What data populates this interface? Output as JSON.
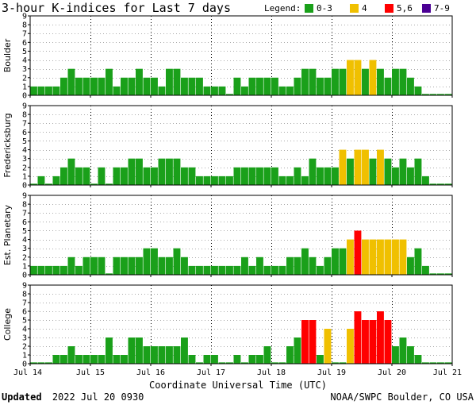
{
  "title": "3-hour K-indices for Last 7 days",
  "legend": {
    "label": "Legend:",
    "items": [
      {
        "text": "0-3",
        "color": "#1aa01a"
      },
      {
        "text": "4",
        "color": "#f0c000"
      },
      {
        "text": "5,6",
        "color": "#ff0000"
      },
      {
        "text": "7-9",
        "color": "#4b0094"
      }
    ]
  },
  "xlabel": "Coordinate Universal Time (UTC)",
  "footer": {
    "updated_label": "Updated",
    "updated_value": "2022 Jul 20 0930",
    "source": "NOAA/SWPC Boulder, CO USA"
  },
  "chart_data": [
    {
      "type": "bar",
      "ylabel": "Boulder",
      "ylim": [
        0,
        9
      ],
      "yticks": [
        0,
        1,
        2,
        3,
        4,
        5,
        6,
        7,
        8,
        9
      ],
      "xticks": [
        "Jul 14",
        "Jul 15",
        "Jul 16",
        "Jul 17",
        "Jul 18",
        "Jul 19",
        "Jul 20",
        "Jul 21"
      ],
      "grid": true,
      "values": [
        1,
        1,
        1,
        1,
        2,
        3,
        2,
        2,
        2,
        2,
        3,
        1,
        2,
        2,
        3,
        2,
        2,
        1,
        3,
        3,
        2,
        2,
        2,
        1,
        1,
        1,
        0,
        2,
        1,
        2,
        2,
        2,
        2,
        1,
        1,
        2,
        3,
        3,
        2,
        2,
        3,
        3,
        4,
        4,
        3,
        4,
        3,
        2,
        3,
        3,
        2,
        1,
        0,
        0,
        0,
        0
      ]
    },
    {
      "type": "bar",
      "ylabel": "Fredericksburg",
      "ylim": [
        0,
        9
      ],
      "yticks": [
        0,
        1,
        2,
        3,
        4,
        5,
        6,
        7,
        8,
        9
      ],
      "xticks": [
        "Jul 14",
        "Jul 15",
        "Jul 16",
        "Jul 17",
        "Jul 18",
        "Jul 19",
        "Jul 20",
        "Jul 21"
      ],
      "grid": true,
      "values": [
        0,
        1,
        0,
        1,
        2,
        3,
        2,
        2,
        0,
        2,
        0,
        2,
        2,
        3,
        3,
        2,
        2,
        3,
        3,
        3,
        2,
        2,
        1,
        1,
        1,
        1,
        1,
        2,
        2,
        2,
        2,
        2,
        2,
        1,
        1,
        2,
        1,
        3,
        2,
        2,
        2,
        4,
        3,
        4,
        4,
        3,
        4,
        3,
        2,
        3,
        2,
        3,
        1,
        0,
        0,
        0
      ]
    },
    {
      "type": "bar",
      "ylabel": "Est. Planetary",
      "ylim": [
        0,
        9
      ],
      "yticks": [
        0,
        1,
        2,
        3,
        4,
        5,
        6,
        7,
        8,
        9
      ],
      "xticks": [
        "Jul 14",
        "Jul 15",
        "Jul 16",
        "Jul 17",
        "Jul 18",
        "Jul 19",
        "Jul 20",
        "Jul 21"
      ],
      "grid": true,
      "values": [
        1,
        1,
        1,
        1,
        1,
        2,
        1,
        2,
        2,
        2,
        0,
        2,
        2,
        2,
        2,
        3,
        3,
        2,
        2,
        3,
        2,
        1,
        1,
        1,
        1,
        1,
        1,
        1,
        2,
        1,
        2,
        1,
        1,
        1,
        2,
        2,
        3,
        2,
        1,
        2,
        3,
        3,
        4,
        5,
        4,
        4,
        4,
        4,
        4,
        4,
        2,
        3,
        1,
        0,
        0,
        0
      ]
    },
    {
      "type": "bar",
      "ylabel": "College",
      "ylim": [
        0,
        9
      ],
      "yticks": [
        0,
        1,
        2,
        3,
        4,
        5,
        6,
        7,
        8,
        9
      ],
      "xticks": [
        "Jul 14",
        "Jul 15",
        "Jul 16",
        "Jul 17",
        "Jul 18",
        "Jul 19",
        "Jul 20",
        "Jul 21"
      ],
      "grid": true,
      "values": [
        0,
        0,
        0,
        1,
        1,
        2,
        1,
        1,
        1,
        1,
        3,
        1,
        1,
        3,
        3,
        2,
        2,
        2,
        2,
        2,
        3,
        1,
        0,
        1,
        1,
        0,
        0,
        1,
        0,
        1,
        1,
        2,
        0,
        0,
        2,
        3,
        5,
        5,
        1,
        4,
        0,
        0,
        4,
        6,
        5,
        5,
        6,
        5,
        2,
        3,
        2,
        1,
        0,
        0,
        0,
        0
      ]
    }
  ]
}
